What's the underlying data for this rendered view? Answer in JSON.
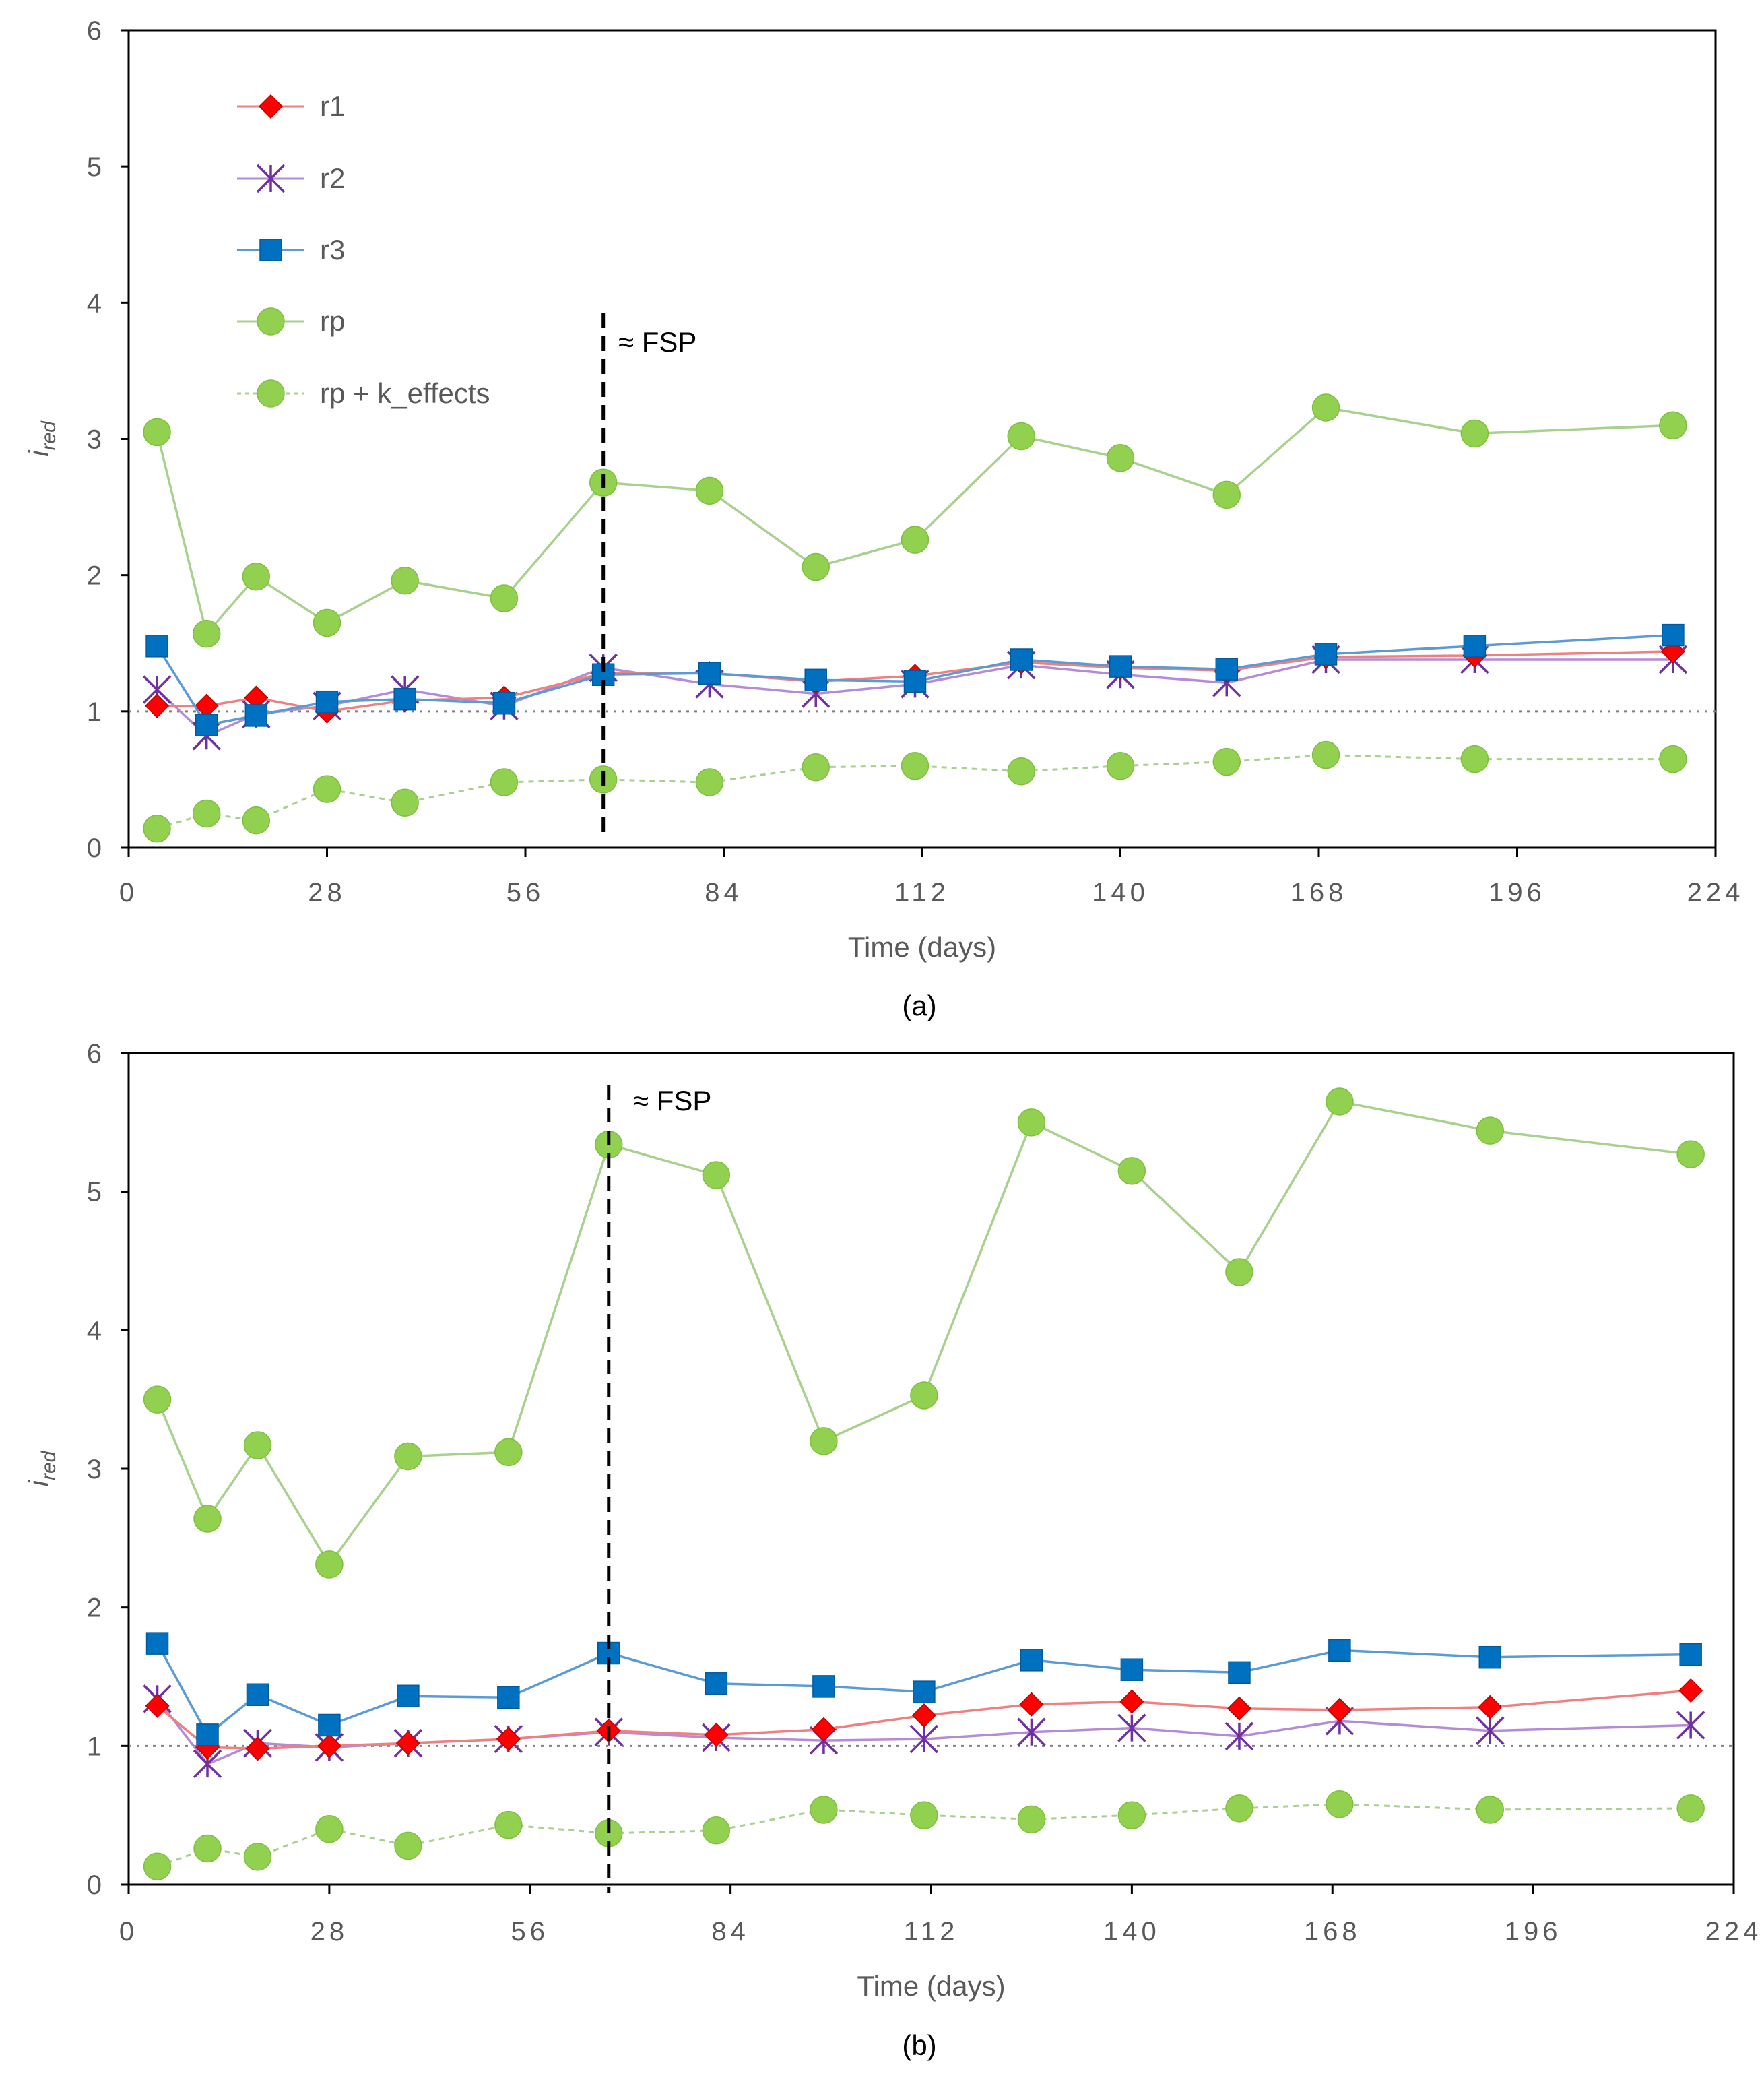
{
  "colors": {
    "r1": "#ff0000",
    "r1_line": "#f08080",
    "r2": "#7030a0",
    "r2_line": "#b58ad6",
    "r3": "#0070c0",
    "r3_line": "#5b9bd5",
    "rp": "#92d050",
    "rp_line": "#a9d18e",
    "axis": "#000000",
    "ref": "#808080"
  },
  "legend": [
    {
      "key": "r1",
      "label": "r1",
      "icon": "diamond-icon"
    },
    {
      "key": "r2",
      "label": "r2",
      "icon": "asterisk-icon"
    },
    {
      "key": "r3",
      "label": "r3",
      "icon": "square-icon"
    },
    {
      "key": "rp",
      "label": "rp",
      "icon": "circle-icon"
    },
    {
      "key": "rpk",
      "label": "rp + k_effects",
      "icon": "circle-icon"
    }
  ],
  "chart_data": [
    {
      "type": "line",
      "caption": "(a)",
      "xlabel": "Time (days)",
      "ylabel": "ired",
      "ylabel_main": "i",
      "ylabel_sub": "red",
      "xlim": [
        0,
        224
      ],
      "ylim": [
        0,
        6
      ],
      "xticks": [
        "0",
        "28",
        "56",
        "84",
        "112",
        "140",
        "168",
        "196",
        "224"
      ],
      "yticks": [
        "0",
        "1",
        "2",
        "3",
        "4",
        "5",
        "6"
      ],
      "reference_line": 1,
      "annotation": {
        "label": "≈ FSP",
        "x": 67
      },
      "x": [
        4,
        11,
        18,
        28,
        39,
        53,
        67,
        82,
        97,
        111,
        126,
        140,
        155,
        169,
        190,
        218
      ],
      "series": [
        {
          "key": "r1",
          "name": "r1",
          "marker": "diamond",
          "values": [
            1.04,
            1.04,
            1.1,
            1.0,
            1.08,
            1.1,
            1.28,
            1.28,
            1.22,
            1.26,
            1.36,
            1.32,
            1.3,
            1.4,
            1.41,
            1.44
          ]
        },
        {
          "key": "r2",
          "name": "r2",
          "marker": "asterisk",
          "values": [
            1.16,
            0.82,
            0.98,
            1.04,
            1.16,
            1.04,
            1.32,
            1.2,
            1.13,
            1.2,
            1.34,
            1.27,
            1.21,
            1.38,
            1.38,
            1.38
          ]
        },
        {
          "key": "r3",
          "name": "r3",
          "marker": "square",
          "values": [
            1.48,
            0.9,
            0.97,
            1.07,
            1.09,
            1.06,
            1.27,
            1.28,
            1.23,
            1.22,
            1.38,
            1.33,
            1.31,
            1.42,
            1.48,
            1.56
          ]
        },
        {
          "key": "rp",
          "name": "rp",
          "marker": "circle",
          "dashed": false,
          "values": [
            3.05,
            1.57,
            1.99,
            1.65,
            1.96,
            1.83,
            2.68,
            2.62,
            2.06,
            2.26,
            3.02,
            2.86,
            2.59,
            3.23,
            3.04,
            3.1
          ]
        },
        {
          "key": "rpk",
          "name": "rp + k_effects",
          "marker": "circle",
          "dashed": true,
          "values": [
            0.14,
            0.25,
            0.2,
            0.43,
            0.33,
            0.48,
            0.5,
            0.48,
            0.59,
            0.6,
            0.56,
            0.6,
            0.63,
            0.68,
            0.65,
            0.65
          ]
        }
      ]
    },
    {
      "type": "line",
      "caption": "(b)",
      "xlabel": "Time (days)",
      "ylabel": "ired",
      "ylabel_main": "i",
      "ylabel_sub": "red",
      "xlim": [
        0,
        224
      ],
      "ylim": [
        0,
        6
      ],
      "xticks": [
        "0",
        "28",
        "56",
        "84",
        "112",
        "140",
        "168",
        "196",
        "224"
      ],
      "yticks": [
        "0",
        "1",
        "2",
        "3",
        "4",
        "5",
        "6"
      ],
      "reference_line": 1,
      "annotation": {
        "label": "≈ FSP",
        "x": 67
      },
      "x": [
        4,
        11,
        18,
        28,
        39,
        53,
        67,
        82,
        97,
        111,
        126,
        140,
        155,
        169,
        190,
        218
      ],
      "series": [
        {
          "key": "r1",
          "name": "r1",
          "marker": "diamond",
          "values": [
            1.29,
            0.99,
            0.98,
            1.0,
            1.02,
            1.05,
            1.11,
            1.08,
            1.12,
            1.22,
            1.3,
            1.32,
            1.27,
            1.26,
            1.28,
            1.4
          ]
        },
        {
          "key": "r2",
          "name": "r2",
          "marker": "asterisk",
          "values": [
            1.34,
            0.87,
            1.02,
            0.99,
            1.02,
            1.05,
            1.1,
            1.06,
            1.04,
            1.05,
            1.1,
            1.13,
            1.07,
            1.18,
            1.11,
            1.15
          ]
        },
        {
          "key": "r3",
          "name": "r3",
          "marker": "square",
          "values": [
            1.74,
            1.08,
            1.37,
            1.15,
            1.36,
            1.35,
            1.67,
            1.45,
            1.43,
            1.39,
            1.62,
            1.55,
            1.53,
            1.69,
            1.64,
            1.66
          ]
        },
        {
          "key": "rp",
          "name": "rp",
          "marker": "circle",
          "dashed": false,
          "values": [
            3.5,
            2.64,
            3.17,
            2.31,
            3.09,
            3.12,
            5.34,
            5.12,
            3.2,
            3.53,
            5.5,
            5.15,
            4.42,
            5.65,
            5.44,
            5.27
          ]
        },
        {
          "key": "rpk",
          "name": "rp + k_effects",
          "marker": "circle",
          "dashed": true,
          "values": [
            0.13,
            0.26,
            0.2,
            0.4,
            0.28,
            0.43,
            0.37,
            0.39,
            0.54,
            0.5,
            0.47,
            0.5,
            0.55,
            0.58,
            0.54,
            0.55
          ]
        }
      ]
    }
  ]
}
